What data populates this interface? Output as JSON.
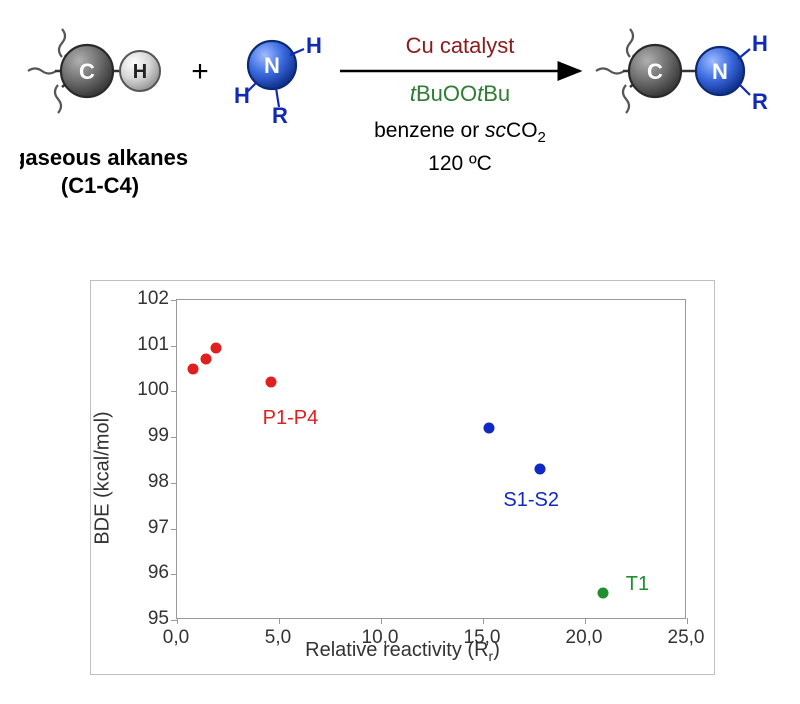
{
  "scheme": {
    "caption_line1": "gaseous alkanes",
    "caption_line2": "(C1-C4)",
    "plus": "+",
    "carbon_label": "C",
    "hydrogen_label": "H",
    "nitrogen_label": "N",
    "r_label": "R",
    "catalyst_text": "Cu catalyst",
    "catalyst_color": "#8b1a1a",
    "oxidant_prefix": "t",
    "oxidant_body": "BuOO",
    "oxidant_suffix2": "t",
    "oxidant_tail": "Bu",
    "oxidant_color": "#2e7d32",
    "solvent_prefix": "benzene or ",
    "solvent_italic": "sc",
    "solvent_rest": "CO",
    "solvent_sub": "2",
    "temperature": "120 ºC",
    "carbon_fill": "#6b6b6b",
    "carbon_stroke": "#2a2a2a",
    "hydrogen_fill": "#cfcfcf",
    "hydrogen_stroke": "#555555",
    "nitrogen_fill": "#2a5cd8",
    "nitrogen_highlight": "#7aa3f0",
    "nitrogen_stroke": "#0b2a72",
    "bond_color": "#333333",
    "tail_color": "#555555",
    "text_black": "#000000",
    "text_blue": "#1029b6",
    "text_white": "#ffffff"
  },
  "chart": {
    "type": "scatter",
    "xlabel": "Relative reactivity (Rᵣ)",
    "xlabel_plain": "Relative reactivity (R",
    "xlabel_sub": "r",
    "xlabel_close": ")",
    "ylabel": "BDE (kcal/mol)",
    "xlim": [
      0,
      25
    ],
    "ylim": [
      95,
      102
    ],
    "xtick_vals": [
      0,
      5,
      10,
      15,
      20,
      25
    ],
    "xtick_labels": [
      "0,0",
      "5,0",
      "10,0",
      "15,0",
      "20,0",
      "25,0"
    ],
    "ytick_vals": [
      95,
      96,
      97,
      98,
      99,
      100,
      101,
      102
    ],
    "ytick_labels": [
      "95",
      "96",
      "97",
      "98",
      "99",
      "100",
      "101",
      "102"
    ],
    "axis_color": "#999999",
    "tick_font_color": "#333333",
    "tick_fontsize": 19,
    "label_fontsize": 20,
    "background_color": "#ffffff",
    "border_color": "#bfbfbf",
    "point_radius": 5.5,
    "series": [
      {
        "name": "P1-P4",
        "color": "#e02020",
        "label_pos": {
          "x": 4.2,
          "y": 99.45
        },
        "points": [
          {
            "x": 0.8,
            "y": 100.5
          },
          {
            "x": 1.4,
            "y": 100.7
          },
          {
            "x": 1.9,
            "y": 100.95
          },
          {
            "x": 4.6,
            "y": 100.2
          }
        ]
      },
      {
        "name": "S1-S2",
        "color": "#1028c8",
        "label_pos": {
          "x": 16.0,
          "y": 97.65
        },
        "points": [
          {
            "x": 15.3,
            "y": 99.2
          },
          {
            "x": 17.8,
            "y": 98.3
          }
        ]
      },
      {
        "name": "T1",
        "color": "#1f8f2f",
        "label_pos": {
          "x": 22.0,
          "y": 95.8
        },
        "points": [
          {
            "x": 20.9,
            "y": 95.6
          }
        ]
      }
    ]
  }
}
